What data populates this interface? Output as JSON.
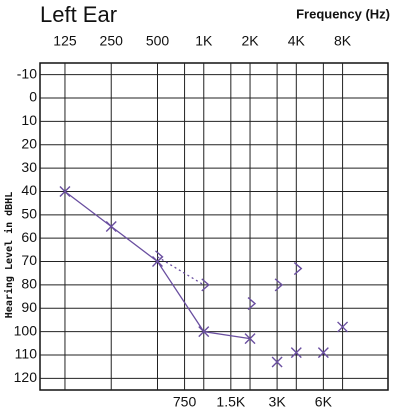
{
  "chart_data": {
    "type": "line",
    "title": "Left Ear",
    "x_label": "Frequency (Hz)",
    "y_label": "Hearing Level in dBHL",
    "xlim": [
      86,
      15800
    ],
    "xticks": [
      125,
      250,
      500,
      {
        "value": 1000,
        "label": "1K"
      },
      {
        "value": 2000,
        "label": "2K"
      },
      {
        "value": 4000,
        "label": "4K"
      },
      {
        "value": 8000,
        "label": "8K"
      }
    ],
    "x2ticks": [
      750,
      {
        "value": 1500,
        "label": "1.5K"
      },
      {
        "value": 3000,
        "label": "3K"
      },
      {
        "value": 6000,
        "label": "6K"
      }
    ],
    "ylim": [
      -15,
      125
    ],
    "yticks": [
      -10,
      0,
      10,
      20,
      30,
      40,
      50,
      60,
      70,
      80,
      90,
      100,
      110,
      120
    ],
    "y_inverted": true,
    "log_x": true,
    "grid": true,
    "series": [
      {
        "color": "#6a4fa0",
        "marker": "x",
        "line": "solid",
        "x": [
          125,
          250,
          500,
          1000,
          2000
        ],
        "values": [
          40,
          55,
          70,
          100,
          103
        ]
      },
      {
        "color": "#6a4fa0",
        "marker": "bracket",
        "line": "dotted",
        "x": [
          500,
          1000
        ],
        "values": [
          68,
          80
        ]
      },
      {
        "color": "#6a4fa0",
        "marker": "bracket",
        "line": "none",
        "x": [
          2000,
          3000,
          4000
        ],
        "values": [
          88,
          80,
          73
        ]
      },
      {
        "color": "#6a4fa0",
        "marker": "x",
        "line": "none",
        "x": [
          3000,
          4000,
          6000,
          8000
        ],
        "values": [
          113,
          109,
          109,
          98
        ]
      }
    ]
  }
}
